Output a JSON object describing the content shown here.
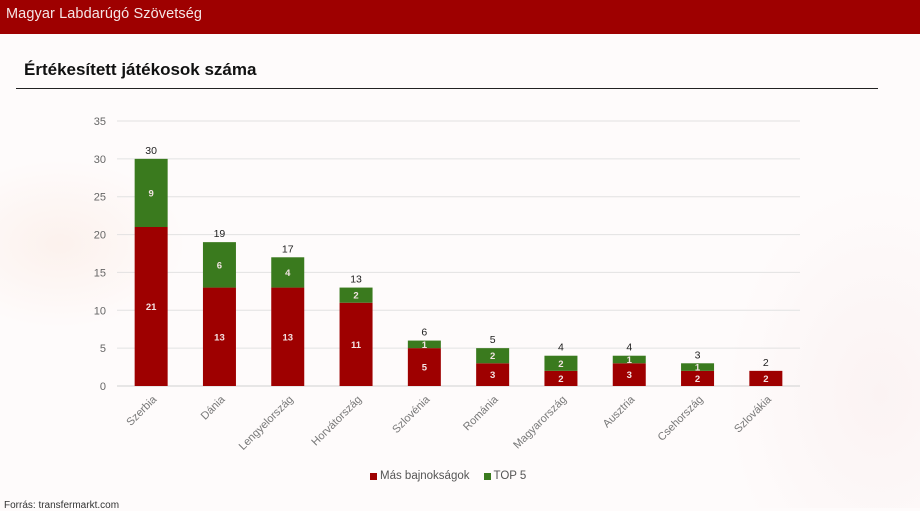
{
  "header": {
    "org_name": "Magyar Labdarúgó Szövetség"
  },
  "slide": {
    "title": "Értékesített játékosok száma",
    "source": "Forrás: transfermarkt.com"
  },
  "colors": {
    "header_bg": "#9e0000",
    "series_mas": "#9e0000",
    "series_top5": "#3a7a1e"
  },
  "chart_data": {
    "type": "bar",
    "stacked": true,
    "title": "Értékesített játékosok száma",
    "xlabel": "",
    "ylabel": "",
    "ylim": [
      0,
      35
    ],
    "yticks": [
      0,
      5,
      10,
      15,
      20,
      25,
      30,
      35
    ],
    "grid": true,
    "legend_position": "bottom",
    "categories": [
      "Szerbia",
      "Dánia",
      "Lengyelország",
      "Horvátország",
      "Szlovénia",
      "Románia",
      "Magyarország",
      "Ausztria",
      "Csehország",
      "Szlovákia"
    ],
    "series": [
      {
        "name": "Más bajnokságok",
        "color": "#9e0000",
        "values": [
          21,
          13,
          13,
          11,
          5,
          3,
          2,
          3,
          2,
          2
        ]
      },
      {
        "name": "TOP 5",
        "color": "#3a7a1e",
        "values": [
          9,
          6,
          4,
          2,
          1,
          2,
          2,
          1,
          1,
          0
        ]
      }
    ],
    "totals": [
      30,
      19,
      17,
      13,
      6,
      5,
      4,
      4,
      3,
      2
    ]
  }
}
